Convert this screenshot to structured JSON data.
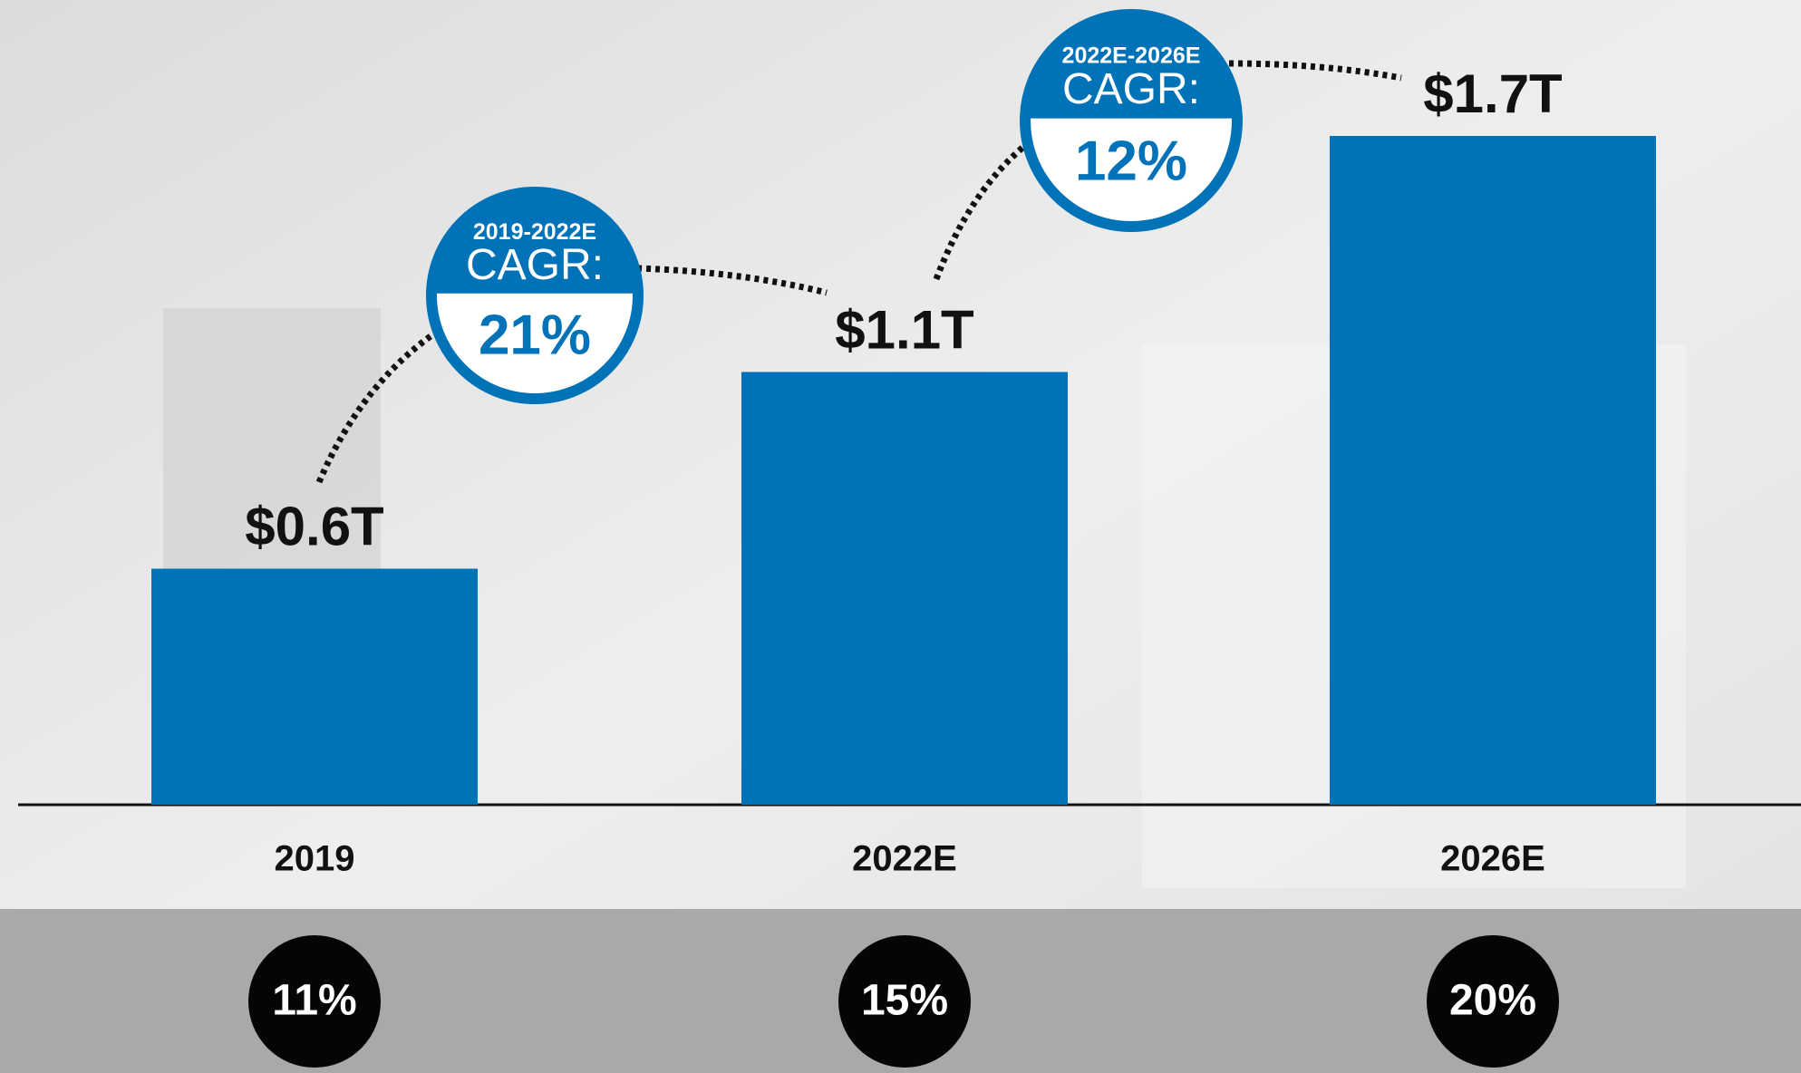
{
  "chart_data": {
    "type": "bar",
    "categories": [
      "2019",
      "2022E",
      "2026E"
    ],
    "values": [
      0.6,
      1.1,
      1.7
    ],
    "value_labels": [
      "$0.6T",
      "$1.1T",
      "$1.7T"
    ],
    "color": "#0072b8",
    "ylim": [
      0,
      1.7
    ],
    "annotations": [
      {
        "period": "2019-2022E",
        "label": "CAGR:",
        "value": 21,
        "value_label": "21%"
      },
      {
        "period": "2022E-2026E",
        "label": "CAGR:",
        "value": 12,
        "value_label": "12%"
      }
    ],
    "shares": {
      "values": [
        11,
        15,
        20
      ],
      "value_labels": [
        "11%",
        "15%",
        "20%"
      ]
    }
  }
}
